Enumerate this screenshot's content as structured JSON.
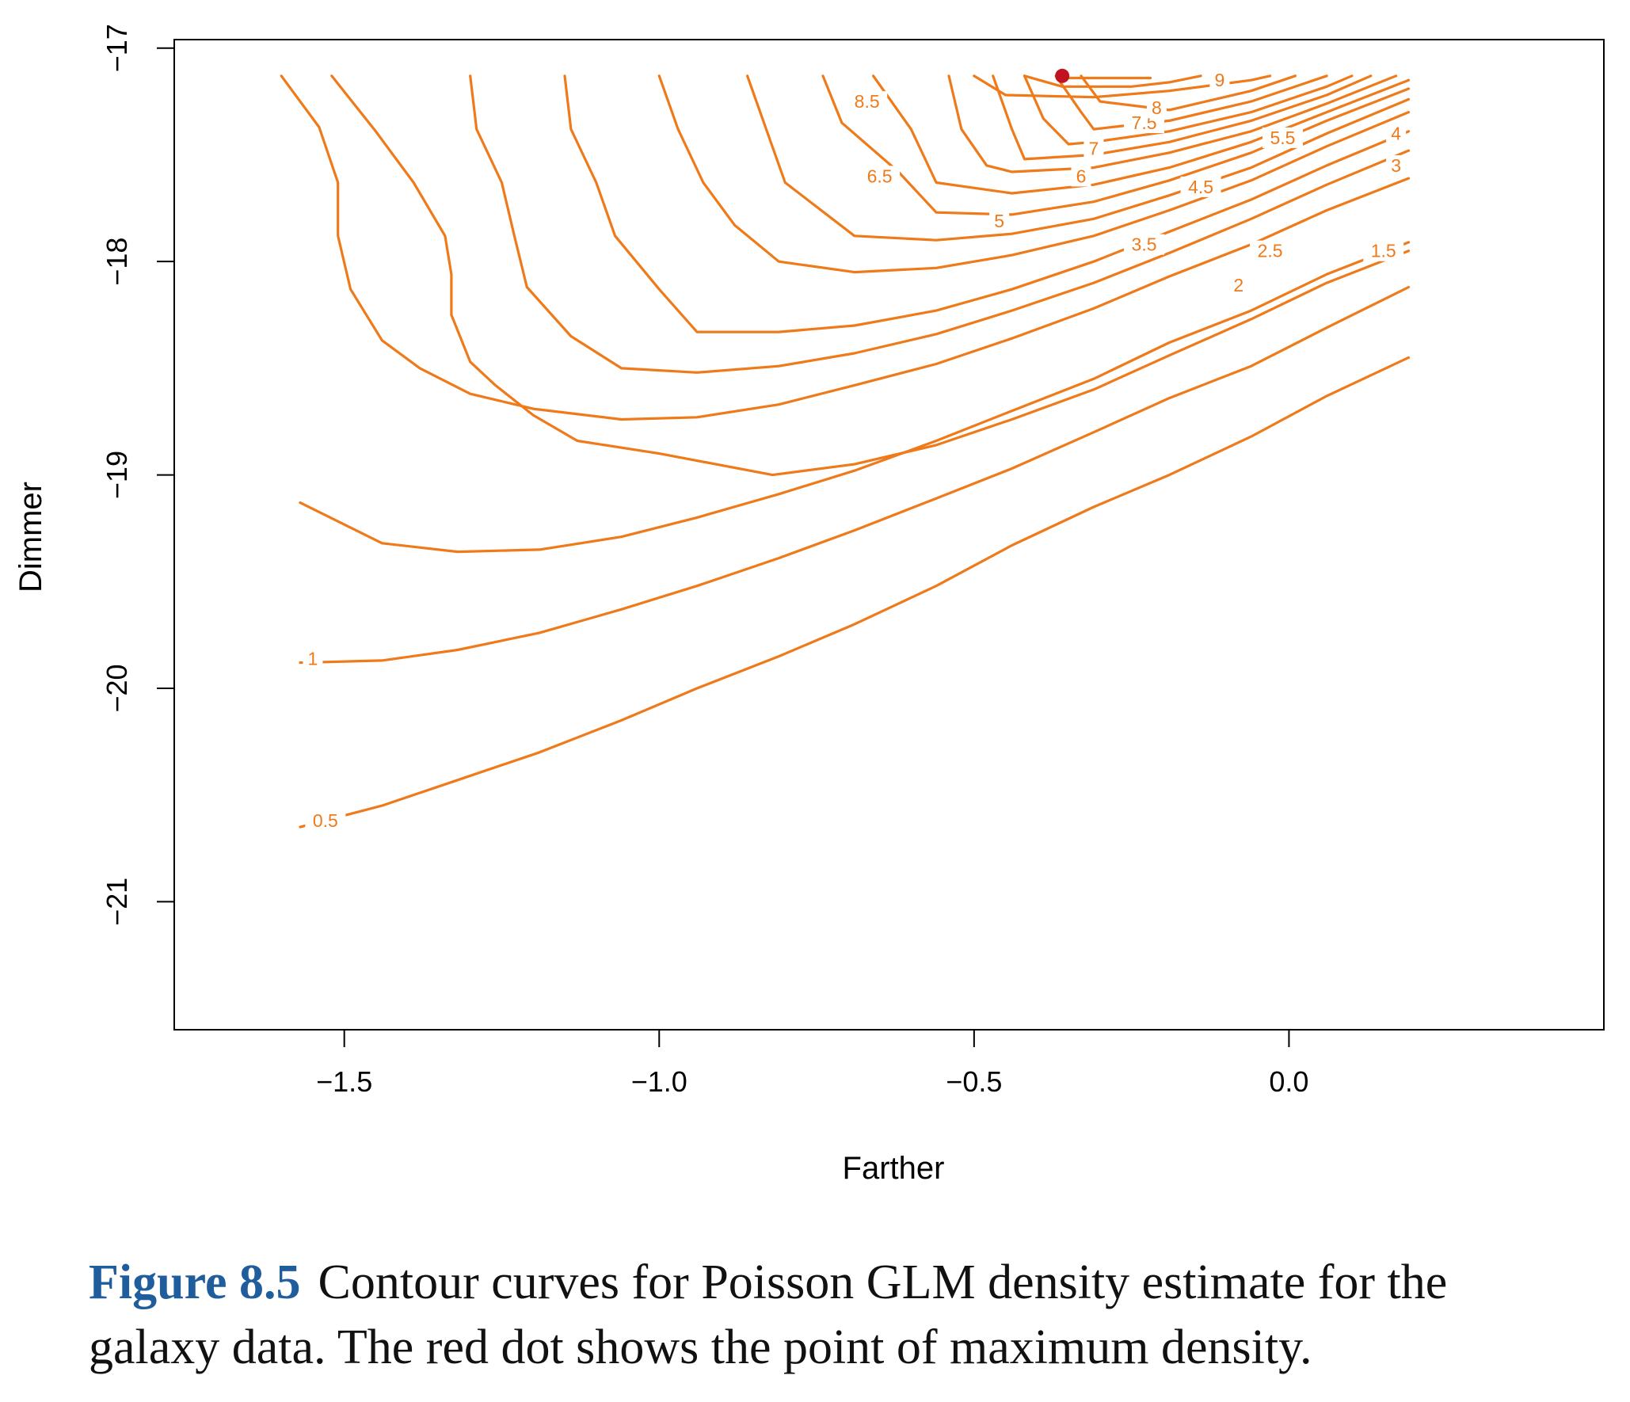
{
  "chart_data": {
    "type": "contour",
    "title": "",
    "xlabel": "Farther",
    "ylabel": "Dimmer",
    "xlim": [
      -1.77,
      0.5
    ],
    "ylim": [
      -21.6,
      -16.96
    ],
    "xticks": [
      -1.5,
      -1.0,
      -0.5,
      0.0
    ],
    "xtick_labels": [
      "−1.5",
      "−1.0",
      "−0.5",
      "0.0"
    ],
    "yticks": [
      -17,
      -18,
      -19,
      -20,
      -21
    ],
    "ytick_labels": [
      "−17",
      "−18",
      "−19",
      "−20",
      "−21"
    ],
    "line_color": "#ef7a1a",
    "max_point": {
      "x": -0.36,
      "y": -17.13,
      "color": "#c1121f"
    },
    "levels": [
      {
        "level": 0.5,
        "label": "0.5",
        "label_at": [
          -1.53,
          -20.62
        ],
        "points": [
          [
            -1.57,
            -20.65
          ],
          [
            -1.44,
            -20.55
          ],
          [
            -1.32,
            -20.43
          ],
          [
            -1.19,
            -20.3
          ],
          [
            -1.06,
            -20.15
          ],
          [
            -0.94,
            -20.0
          ],
          [
            -0.81,
            -19.85
          ],
          [
            -0.69,
            -19.7
          ],
          [
            -0.56,
            -19.52
          ],
          [
            -0.44,
            -19.33
          ],
          [
            -0.31,
            -19.15
          ],
          [
            -0.19,
            -19.0
          ],
          [
            -0.06,
            -18.82
          ],
          [
            0.06,
            -18.63
          ],
          [
            0.19,
            -18.45
          ]
        ]
      },
      {
        "level": 1,
        "label": "1",
        "label_at": [
          -1.55,
          -19.86
        ],
        "points": [
          [
            -1.57,
            -19.88
          ],
          [
            -1.44,
            -19.87
          ],
          [
            -1.32,
            -19.82
          ],
          [
            -1.19,
            -19.74
          ],
          [
            -1.06,
            -19.63
          ],
          [
            -0.94,
            -19.52
          ],
          [
            -0.81,
            -19.39
          ],
          [
            -0.69,
            -19.26
          ],
          [
            -0.56,
            -19.11
          ],
          [
            -0.44,
            -18.97
          ],
          [
            -0.31,
            -18.8
          ],
          [
            -0.19,
            -18.64
          ],
          [
            -0.06,
            -18.49
          ],
          [
            0.06,
            -18.31
          ],
          [
            0.19,
            -18.12
          ]
        ]
      },
      {
        "level": 1.5,
        "label": "1.5",
        "label_at": [
          0.15,
          -17.95
        ],
        "points": [
          [
            -1.57,
            -19.13
          ],
          [
            -1.44,
            -19.32
          ],
          [
            -1.32,
            -19.36
          ],
          [
            -1.19,
            -19.35
          ],
          [
            -1.06,
            -19.29
          ],
          [
            -0.94,
            -19.2
          ],
          [
            -0.81,
            -19.09
          ],
          [
            -0.69,
            -18.98
          ],
          [
            -0.56,
            -18.84
          ],
          [
            -0.44,
            -18.7
          ],
          [
            -0.31,
            -18.55
          ],
          [
            -0.19,
            -18.38
          ],
          [
            -0.06,
            -18.23
          ],
          [
            0.06,
            -18.06
          ],
          [
            0.19,
            -17.91
          ]
        ]
      },
      {
        "level": 2,
        "label": "2",
        "label_at": [
          -0.08,
          -18.11
        ],
        "points": [
          [
            -1.52,
            -17.13
          ],
          [
            -1.45,
            -17.39
          ],
          [
            -1.39,
            -17.63
          ],
          [
            -1.34,
            -17.88
          ],
          [
            -1.33,
            -18.06
          ],
          [
            -1.33,
            -18.25
          ],
          [
            -1.3,
            -18.47
          ],
          [
            -1.26,
            -18.58
          ],
          [
            -1.2,
            -18.72
          ],
          [
            -1.13,
            -18.84
          ],
          [
            -1.0,
            -18.9
          ],
          [
            -0.82,
            -19.0
          ],
          [
            -0.69,
            -18.95
          ],
          [
            -0.56,
            -18.86
          ],
          [
            -0.44,
            -18.74
          ],
          [
            -0.31,
            -18.6
          ],
          [
            -0.19,
            -18.44
          ],
          [
            -0.06,
            -18.27
          ],
          [
            0.06,
            -18.1
          ],
          [
            0.19,
            -17.95
          ]
        ]
      },
      {
        "level": 2.5,
        "label": "2.5",
        "label_at": [
          -0.03,
          -17.95
        ],
        "points": [
          [
            -1.6,
            -17.13
          ],
          [
            -1.54,
            -17.37
          ],
          [
            -1.51,
            -17.63
          ],
          [
            -1.51,
            -17.88
          ],
          [
            -1.49,
            -18.13
          ],
          [
            -1.44,
            -18.37
          ],
          [
            -1.38,
            -18.5
          ],
          [
            -1.3,
            -18.62
          ],
          [
            -1.2,
            -18.69
          ],
          [
            -1.06,
            -18.74
          ],
          [
            -0.94,
            -18.73
          ],
          [
            -0.81,
            -18.67
          ],
          [
            -0.69,
            -18.58
          ],
          [
            -0.56,
            -18.48
          ],
          [
            -0.44,
            -18.36
          ],
          [
            -0.31,
            -18.22
          ],
          [
            -0.19,
            -18.07
          ],
          [
            -0.06,
            -17.92
          ],
          [
            0.06,
            -17.76
          ],
          [
            0.19,
            -17.61
          ]
        ]
      },
      {
        "level": 3,
        "label": "3",
        "label_at": [
          0.17,
          -17.55
        ],
        "points": [
          [
            -1.3,
            -17.13
          ],
          [
            -1.29,
            -17.38
          ],
          [
            -1.25,
            -17.63
          ],
          [
            -1.23,
            -17.88
          ],
          [
            -1.21,
            -18.12
          ],
          [
            -1.14,
            -18.35
          ],
          [
            -1.06,
            -18.5
          ],
          [
            -0.94,
            -18.52
          ],
          [
            -0.81,
            -18.49
          ],
          [
            -0.69,
            -18.43
          ],
          [
            -0.56,
            -18.34
          ],
          [
            -0.44,
            -18.23
          ],
          [
            -0.31,
            -18.1
          ],
          [
            -0.19,
            -17.96
          ],
          [
            -0.06,
            -17.8
          ],
          [
            0.06,
            -17.64
          ],
          [
            0.19,
            -17.48
          ]
        ]
      },
      {
        "level": 3.5,
        "label": "3.5",
        "label_at": [
          -0.23,
          -17.92
        ],
        "points": [
          [
            -1.15,
            -17.13
          ],
          [
            -1.14,
            -17.38
          ],
          [
            -1.1,
            -17.63
          ],
          [
            -1.07,
            -17.88
          ],
          [
            -1.0,
            -18.13
          ],
          [
            -0.94,
            -18.33
          ],
          [
            -0.81,
            -18.33
          ],
          [
            -0.69,
            -18.3
          ],
          [
            -0.56,
            -18.23
          ],
          [
            -0.44,
            -18.13
          ],
          [
            -0.31,
            -18.0
          ],
          [
            -0.19,
            -17.86
          ],
          [
            -0.06,
            -17.71
          ],
          [
            0.06,
            -17.55
          ],
          [
            0.19,
            -17.39
          ]
        ]
      },
      {
        "level": 4,
        "label": "4",
        "label_at": [
          0.17,
          -17.4
        ],
        "points": [
          [
            -1.0,
            -17.13
          ],
          [
            -0.97,
            -17.38
          ],
          [
            -0.93,
            -17.63
          ],
          [
            -0.88,
            -17.83
          ],
          [
            -0.81,
            -18.0
          ],
          [
            -0.69,
            -18.05
          ],
          [
            -0.56,
            -18.03
          ],
          [
            -0.44,
            -17.97
          ],
          [
            -0.31,
            -17.88
          ],
          [
            -0.19,
            -17.76
          ],
          [
            -0.06,
            -17.62
          ],
          [
            0.06,
            -17.46
          ],
          [
            0.19,
            -17.3
          ]
        ]
      },
      {
        "level": 4.5,
        "label": "4.5",
        "label_at": [
          -0.14,
          -17.65
        ],
        "points": [
          [
            -0.86,
            -17.13
          ],
          [
            -0.83,
            -17.38
          ],
          [
            -0.8,
            -17.63
          ],
          [
            -0.69,
            -17.88
          ],
          [
            -0.56,
            -17.9
          ],
          [
            -0.44,
            -17.87
          ],
          [
            -0.31,
            -17.8
          ],
          [
            -0.19,
            -17.69
          ],
          [
            -0.06,
            -17.56
          ],
          [
            0.06,
            -17.4
          ],
          [
            0.19,
            -17.24
          ]
        ]
      },
      {
        "level": 5,
        "label": "5",
        "label_at": [
          -0.46,
          -17.81
        ],
        "points": [
          [
            -0.74,
            -17.13
          ],
          [
            -0.71,
            -17.35
          ],
          [
            -0.62,
            -17.58
          ],
          [
            -0.56,
            -17.77
          ],
          [
            -0.44,
            -17.78
          ],
          [
            -0.31,
            -17.72
          ],
          [
            -0.19,
            -17.62
          ],
          [
            -0.06,
            -17.49
          ],
          [
            0.06,
            -17.34
          ],
          [
            0.19,
            -17.19
          ]
        ]
      },
      {
        "level": 5.5,
        "label": "5.5",
        "label_at": [
          -0.01,
          -17.42
        ],
        "points": [
          [
            -0.66,
            -17.13
          ],
          [
            -0.6,
            -17.38
          ],
          [
            -0.56,
            -17.63
          ],
          [
            -0.44,
            -17.68
          ],
          [
            -0.31,
            -17.64
          ],
          [
            -0.19,
            -17.56
          ],
          [
            -0.06,
            -17.44
          ],
          [
            0.06,
            -17.3
          ],
          [
            0.19,
            -17.15
          ]
        ]
      },
      {
        "level": 6,
        "label": "6",
        "label_at": [
          -0.33,
          -17.6
        ],
        "points": [
          [
            -0.54,
            -17.13
          ],
          [
            -0.52,
            -17.38
          ],
          [
            -0.48,
            -17.55
          ],
          [
            -0.44,
            -17.58
          ],
          [
            -0.31,
            -17.56
          ],
          [
            -0.19,
            -17.49
          ],
          [
            -0.06,
            -17.39
          ],
          [
            0.06,
            -17.26
          ],
          [
            0.17,
            -17.13
          ]
        ]
      },
      {
        "level": 6.5,
        "label": "6.5",
        "label_at": [
          -0.65,
          -17.6
        ],
        "points": [
          [
            -0.47,
            -17.13
          ],
          [
            -0.44,
            -17.38
          ],
          [
            -0.42,
            -17.52
          ],
          [
            -0.31,
            -17.5
          ],
          [
            -0.19,
            -17.44
          ],
          [
            -0.06,
            -17.34
          ],
          [
            0.06,
            -17.22
          ],
          [
            0.13,
            -17.13
          ]
        ]
      },
      {
        "level": 7,
        "label": "7",
        "label_at": [
          -0.31,
          -17.47
        ],
        "points": [
          [
            -0.42,
            -17.13
          ],
          [
            -0.39,
            -17.33
          ],
          [
            -0.35,
            -17.45
          ],
          [
            -0.31,
            -17.44
          ],
          [
            -0.19,
            -17.39
          ],
          [
            -0.06,
            -17.3
          ],
          [
            0.06,
            -17.18
          ],
          [
            0.1,
            -17.13
          ]
        ]
      },
      {
        "level": 7.5,
        "label": "7.5",
        "label_at": [
          -0.23,
          -17.35
        ],
        "points": [
          [
            -0.37,
            -17.13
          ],
          [
            -0.33,
            -17.3
          ],
          [
            -0.31,
            -17.38
          ],
          [
            -0.19,
            -17.34
          ],
          [
            -0.06,
            -17.25
          ],
          [
            0.03,
            -17.16
          ],
          [
            0.06,
            -17.13
          ]
        ]
      },
      {
        "level": 8,
        "label": "8",
        "label_at": [
          -0.21,
          -17.28
        ],
        "points": [
          [
            -0.33,
            -17.13
          ],
          [
            -0.3,
            -17.25
          ],
          [
            -0.19,
            -17.29
          ],
          [
            -0.06,
            -17.2
          ],
          [
            0.01,
            -17.13
          ]
        ]
      },
      {
        "level": 8.5,
        "label": "8.5",
        "label_at": [
          -0.67,
          -17.25
        ],
        "points": [
          [
            -0.5,
            -17.13
          ],
          [
            -0.45,
            -17.22
          ],
          [
            -0.31,
            -17.23
          ],
          [
            -0.19,
            -17.2
          ],
          [
            -0.06,
            -17.15
          ],
          [
            -0.03,
            -17.13
          ]
        ]
      },
      {
        "level": 9,
        "label": "9",
        "label_at": [
          -0.11,
          -17.15
        ],
        "points": [
          [
            -0.42,
            -17.13
          ],
          [
            -0.36,
            -17.18
          ],
          [
            -0.25,
            -17.18
          ],
          [
            -0.19,
            -17.16
          ],
          [
            -0.14,
            -17.13
          ]
        ]
      },
      {
        "level": 9.5,
        "label": "",
        "label_at": null,
        "points": [
          [
            -0.35,
            -17.14
          ],
          [
            -0.22,
            -17.14
          ]
        ]
      }
    ]
  },
  "caption": {
    "figure_number": "Figure 8.5",
    "text": "Contour curves for Poisson GLM density estimate for the galaxy data. The red dot shows the point of maximum density."
  }
}
